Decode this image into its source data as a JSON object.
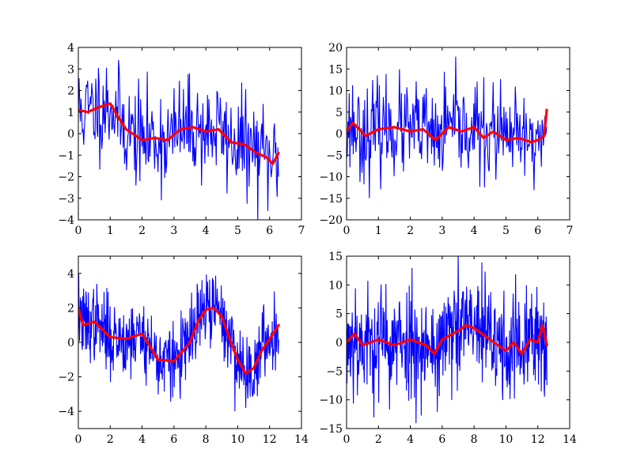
{
  "chart_data": [
    {
      "type": "line",
      "panel": "top-left",
      "xlim": [
        0,
        7
      ],
      "ylim": [
        -4,
        4
      ],
      "xticks": [
        0,
        1,
        2,
        3,
        4,
        5,
        6,
        7
      ],
      "yticks": [
        -4,
        -3,
        -2,
        -1,
        0,
        1,
        2,
        3,
        4
      ],
      "xtick_labels": [
        "0",
        "1",
        "2",
        "3",
        "4",
        "5",
        "6",
        "7"
      ],
      "ytick_labels": [
        "−4",
        "−3",
        "−2",
        "−1",
        "0",
        "1",
        "2",
        "3",
        "4"
      ],
      "x_max": 6.28,
      "n_points": 300,
      "noise_amplitude": 1.15,
      "seed": 11,
      "series": [
        {
          "role": "noisy",
          "color": "#0000ff"
        },
        {
          "role": "smoothed",
          "color": "#ff0000",
          "x": [
            0,
            0.3,
            0.6,
            1.0,
            1.2,
            1.5,
            1.8,
            2.0,
            2.4,
            2.8,
            3.2,
            3.6,
            4.0,
            4.4,
            4.8,
            5.2,
            5.6,
            5.9,
            6.1,
            6.28
          ],
          "y": [
            1.1,
            1.0,
            1.2,
            1.4,
            0.9,
            0.2,
            -0.1,
            -0.3,
            -0.2,
            -0.3,
            0.2,
            0.3,
            0.1,
            0.2,
            -0.4,
            -0.5,
            -0.9,
            -1.1,
            -1.4,
            -0.9
          ]
        }
      ]
    },
    {
      "type": "line",
      "panel": "top-right",
      "xlim": [
        0,
        7
      ],
      "ylim": [
        -20,
        20
      ],
      "xticks": [
        0,
        1,
        2,
        3,
        4,
        5,
        6,
        7
      ],
      "yticks": [
        -20,
        -15,
        -10,
        -5,
        0,
        5,
        10,
        15,
        20
      ],
      "xtick_labels": [
        "0",
        "1",
        "2",
        "3",
        "4",
        "5",
        "6",
        "7"
      ],
      "ytick_labels": [
        "−20",
        "−15",
        "−10",
        "−5",
        "0",
        "5",
        "10",
        "15",
        "20"
      ],
      "x_max": 6.28,
      "n_points": 300,
      "noise_amplitude": 5.5,
      "seed": 23,
      "series": [
        {
          "role": "noisy",
          "color": "#0000ff"
        },
        {
          "role": "smoothed",
          "color": "#ff0000",
          "x": [
            0,
            0.2,
            0.4,
            0.6,
            1.0,
            1.5,
            2.0,
            2.4,
            2.8,
            3.2,
            3.6,
            4.0,
            4.3,
            4.6,
            5.0,
            5.4,
            5.8,
            6.0,
            6.2,
            6.28
          ],
          "y": [
            0.5,
            2.5,
            1.0,
            -0.5,
            1.0,
            1.5,
            0.5,
            1.0,
            -1.5,
            1.5,
            0.5,
            1.5,
            -1.0,
            0.5,
            -1.5,
            -1.0,
            -2.0,
            -1.5,
            -0.5,
            5.5
          ]
        }
      ]
    },
    {
      "type": "line",
      "panel": "bottom-left",
      "xlim": [
        0,
        14
      ],
      "ylim": [
        -5,
        5
      ],
      "xticks": [
        0,
        2,
        4,
        6,
        8,
        10,
        12,
        14
      ],
      "yticks": [
        -4,
        -2,
        0,
        2,
        4
      ],
      "xtick_labels": [
        "0",
        "2",
        "4",
        "6",
        "8",
        "10",
        "12",
        "14"
      ],
      "ytick_labels": [
        "−4",
        "−2",
        "0",
        "2",
        "4"
      ],
      "x_max": 12.57,
      "n_points": 500,
      "noise_amplitude": 1.1,
      "seed": 37,
      "series": [
        {
          "role": "noisy",
          "color": "#0000ff"
        },
        {
          "role": "smoothed",
          "color": "#ff0000",
          "x": [
            0,
            0.3,
            1.0,
            2.0,
            3.0,
            4.0,
            5.0,
            6.0,
            7.0,
            7.5,
            8.0,
            8.5,
            9.0,
            9.5,
            10.0,
            10.5,
            11.0,
            11.5,
            12.0,
            12.57
          ],
          "y": [
            2.0,
            1.0,
            1.2,
            0.3,
            0.2,
            0.5,
            -1.0,
            -1.1,
            0.0,
            1.2,
            1.9,
            2.0,
            1.5,
            0.2,
            -1.0,
            -1.8,
            -1.5,
            -0.5,
            0.2,
            1.0
          ]
        }
      ]
    },
    {
      "type": "line",
      "panel": "bottom-right",
      "xlim": [
        0,
        14
      ],
      "ylim": [
        -15,
        15
      ],
      "xticks": [
        0,
        2,
        4,
        6,
        8,
        10,
        12,
        14
      ],
      "yticks": [
        -15,
        -10,
        -5,
        0,
        5,
        10,
        15
      ],
      "xtick_labels": [
        "0",
        "2",
        "4",
        "6",
        "8",
        "10",
        "12",
        "14"
      ],
      "ytick_labels": [
        "−15",
        "−10",
        "−5",
        "0",
        "5",
        "10",
        "15"
      ],
      "x_max": 12.57,
      "n_points": 500,
      "noise_amplitude": 5.0,
      "seed": 53,
      "series": [
        {
          "role": "noisy",
          "color": "#0000ff"
        },
        {
          "role": "smoothed",
          "color": "#ff0000",
          "x": [
            0,
            0.5,
            1.0,
            2.0,
            3.0,
            4.0,
            5.0,
            5.5,
            6.0,
            7.0,
            7.5,
            8.0,
            9.0,
            10.0,
            10.5,
            11.0,
            11.5,
            12.0,
            12.3,
            12.57
          ],
          "y": [
            0.0,
            1.5,
            -0.5,
            0.5,
            -0.5,
            0.5,
            -0.5,
            -2.0,
            0.5,
            2.0,
            3.0,
            2.5,
            0.5,
            -1.5,
            0.0,
            -2.0,
            0.5,
            0.0,
            3.0,
            -0.5
          ]
        }
      ]
    }
  ]
}
